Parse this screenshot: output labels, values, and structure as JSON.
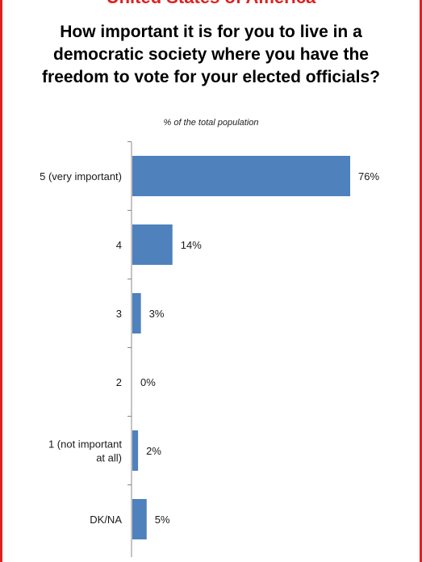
{
  "header": {
    "country": "United States of America"
  },
  "chart_data": {
    "type": "bar",
    "orientation": "horizontal",
    "title": "How important it is for you to live in a democratic society where you have the freedom to vote for your elected officials?",
    "subtitle": "% of the total population",
    "categories": [
      [
        "5 (very important)"
      ],
      [
        "4"
      ],
      [
        "3"
      ],
      [
        "2"
      ],
      [
        "1 (not important",
        "at all)"
      ],
      [
        "DK/NA"
      ]
    ],
    "values": [
      76,
      14,
      3,
      0,
      2,
      5
    ],
    "value_labels": [
      "76%",
      "14%",
      "3%",
      "0%",
      "2%",
      "5%"
    ],
    "xlim": [
      0,
      100
    ],
    "grid": false,
    "bar_color": "#4f81bd"
  }
}
